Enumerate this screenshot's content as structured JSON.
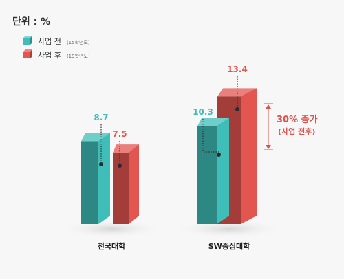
{
  "unit_label": "단위 : %",
  "legend": [
    {
      "label": "사업 전",
      "sub": "(15학년도)",
      "color": "#3fbdb8"
    },
    {
      "label": "사업 후",
      "sub": "(19학년도)",
      "color": "#e3554f"
    }
  ],
  "annotation": {
    "line1": "30% 증가",
    "line2": "(사업 전후)",
    "color": "#e0524c"
  },
  "chart_data": {
    "type": "bar",
    "categories": [
      "전국대학",
      "SW중심대학"
    ],
    "series": [
      {
        "name": "사업 전 (15학년도)",
        "values": [
          8.7,
          10.3
        ],
        "value_labels": [
          "8.7",
          "10.3"
        ]
      },
      {
        "name": "사업 후 (19학년도)",
        "values": [
          7.5,
          13.4
        ],
        "value_labels": [
          "7.5",
          "13.4"
        ]
      }
    ],
    "colors": {
      "before": "#3fbdb8",
      "after": "#e3554f"
    },
    "ylabel": "",
    "grid": false,
    "legend_position": "top-left"
  }
}
